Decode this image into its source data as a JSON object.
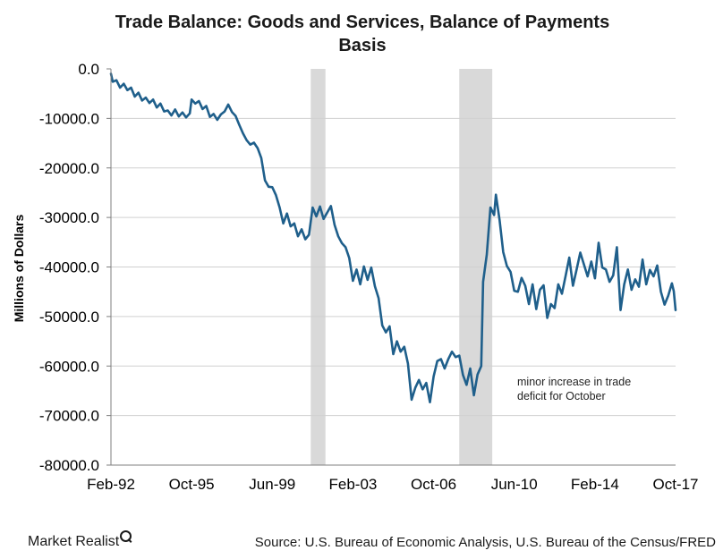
{
  "page": {
    "logo_text": "Market Realist",
    "source": "Source: U.S. Bureau of Economic Analysis, U.S. Bureau of the Census/FRED",
    "annotation": [
      "minor increase in trade",
      "deficit for October"
    ]
  },
  "colors": {
    "line": "#1f5f8b",
    "recession_shade": "#d9d9d9",
    "axis": "#7f7f7f"
  },
  "chart_data": {
    "type": "line",
    "title_lines": [
      "Trade Balance:  Goods  and  Services,  Balance  of  Payments",
      "Basis"
    ],
    "xlabel": "",
    "ylabel": "Millions of Dollars",
    "ylim": [
      -80000,
      0
    ],
    "yticks": [
      0,
      -10000,
      -20000,
      -30000,
      -40000,
      -50000,
      -60000,
      -70000,
      -80000
    ],
    "ytick_labels": [
      "0.0",
      "-10000.0",
      "-20000.0",
      "-30000.0",
      "-40000.0",
      "-50000.0",
      "-60000.0",
      "-70000.0",
      "-80000.0"
    ],
    "xlim": [
      "1992-02",
      "2017-10"
    ],
    "xticks": [
      "1992-02",
      "1995-10",
      "1999-06",
      "2003-02",
      "2006-10",
      "2010-06",
      "2014-02",
      "2017-10"
    ],
    "xtick_labels": [
      "Feb-92",
      "Oct-95",
      "Jun-99",
      "Feb-03",
      "Oct-06",
      "Jun-10",
      "Feb-14",
      "Oct-17"
    ],
    "grid": "horizontal",
    "recessions": [
      [
        "2001-03",
        "2001-11"
      ],
      [
        "2007-12",
        "2009-06"
      ]
    ],
    "series": [
      {
        "points": [
          [
            "1992-02",
            -1000
          ],
          [
            "1992-03",
            -2600
          ],
          [
            "1992-05",
            -2300
          ],
          [
            "1992-07",
            -3800
          ],
          [
            "1992-09",
            -3000
          ],
          [
            "1992-11",
            -4300
          ],
          [
            "1993-01",
            -3800
          ],
          [
            "1993-03",
            -5600
          ],
          [
            "1993-05",
            -4800
          ],
          [
            "1993-07",
            -6400
          ],
          [
            "1993-09",
            -5800
          ],
          [
            "1993-11",
            -6900
          ],
          [
            "1994-01",
            -6200
          ],
          [
            "1994-03",
            -7800
          ],
          [
            "1994-05",
            -7000
          ],
          [
            "1994-07",
            -8600
          ],
          [
            "1994-09",
            -8400
          ],
          [
            "1994-11",
            -9400
          ],
          [
            "1995-01",
            -8200
          ],
          [
            "1995-03",
            -9600
          ],
          [
            "1995-05",
            -8800
          ],
          [
            "1995-07",
            -9800
          ],
          [
            "1995-09",
            -9000
          ],
          [
            "1995-10",
            -6200
          ],
          [
            "1995-12",
            -7000
          ],
          [
            "1996-02",
            -6500
          ],
          [
            "1996-04",
            -8100
          ],
          [
            "1996-06",
            -7500
          ],
          [
            "1996-08",
            -9700
          ],
          [
            "1996-10",
            -9100
          ],
          [
            "1996-12",
            -10300
          ],
          [
            "1997-02",
            -9200
          ],
          [
            "1997-04",
            -8600
          ],
          [
            "1997-06",
            -7200
          ],
          [
            "1997-08",
            -8700
          ],
          [
            "1997-10",
            -9500
          ],
          [
            "1997-12",
            -11300
          ],
          [
            "1998-02",
            -13000
          ],
          [
            "1998-04",
            -14400
          ],
          [
            "1998-06",
            -15300
          ],
          [
            "1998-08",
            -14900
          ],
          [
            "1998-10",
            -16000
          ],
          [
            "1998-12",
            -18000
          ],
          [
            "1999-02",
            -22500
          ],
          [
            "1999-04",
            -23800
          ],
          [
            "1999-06",
            -23900
          ],
          [
            "1999-08",
            -25500
          ],
          [
            "1999-10",
            -28000
          ],
          [
            "1999-12",
            -31200
          ],
          [
            "2000-02",
            -29200
          ],
          [
            "2000-04",
            -31800
          ],
          [
            "2000-06",
            -31200
          ],
          [
            "2000-08",
            -33800
          ],
          [
            "2000-10",
            -32400
          ],
          [
            "2000-12",
            -34400
          ],
          [
            "2001-02",
            -33500
          ],
          [
            "2001-04",
            -28000
          ],
          [
            "2001-06",
            -29800
          ],
          [
            "2001-08",
            -27800
          ],
          [
            "2001-10",
            -30300
          ],
          [
            "2001-12",
            -29000
          ],
          [
            "2002-02",
            -27700
          ],
          [
            "2002-04",
            -31500
          ],
          [
            "2002-06",
            -33800
          ],
          [
            "2002-08",
            -35200
          ],
          [
            "2002-10",
            -36000
          ],
          [
            "2002-12",
            -38200
          ],
          [
            "2003-02",
            -42800
          ],
          [
            "2003-04",
            -40500
          ],
          [
            "2003-06",
            -43500
          ],
          [
            "2003-08",
            -39900
          ],
          [
            "2003-10",
            -42600
          ],
          [
            "2003-12",
            -40100
          ],
          [
            "2004-02",
            -43900
          ],
          [
            "2004-04",
            -46300
          ],
          [
            "2004-06",
            -51800
          ],
          [
            "2004-08",
            -53200
          ],
          [
            "2004-10",
            -52000
          ],
          [
            "2004-12",
            -57600
          ],
          [
            "2005-02",
            -55000
          ],
          [
            "2005-04",
            -57100
          ],
          [
            "2005-06",
            -56100
          ],
          [
            "2005-08",
            -59500
          ],
          [
            "2005-10",
            -66800
          ],
          [
            "2005-12",
            -64400
          ],
          [
            "2006-02",
            -62800
          ],
          [
            "2006-04",
            -64700
          ],
          [
            "2006-06",
            -63400
          ],
          [
            "2006-08",
            -67300
          ],
          [
            "2006-10",
            -62100
          ],
          [
            "2006-12",
            -59000
          ],
          [
            "2007-02",
            -58600
          ],
          [
            "2007-04",
            -60500
          ],
          [
            "2007-06",
            -58600
          ],
          [
            "2007-08",
            -57100
          ],
          [
            "2007-10",
            -58200
          ],
          [
            "2007-12",
            -57900
          ],
          [
            "2008-02",
            -61800
          ],
          [
            "2008-04",
            -63800
          ],
          [
            "2008-06",
            -60500
          ],
          [
            "2008-08",
            -65900
          ],
          [
            "2008-10",
            -61700
          ],
          [
            "2008-12",
            -60000
          ],
          [
            "2009-01",
            -43000
          ],
          [
            "2009-03",
            -37500
          ],
          [
            "2009-05",
            -28000
          ],
          [
            "2009-07",
            -29500
          ],
          [
            "2009-08",
            -25400
          ],
          [
            "2009-10",
            -30500
          ],
          [
            "2009-12",
            -37000
          ],
          [
            "2010-02",
            -39800
          ],
          [
            "2010-04",
            -41000
          ],
          [
            "2010-06",
            -44800
          ],
          [
            "2010-08",
            -45000
          ],
          [
            "2010-10",
            -42200
          ],
          [
            "2010-12",
            -43800
          ],
          [
            "2011-02",
            -47500
          ],
          [
            "2011-04",
            -43500
          ],
          [
            "2011-06",
            -48500
          ],
          [
            "2011-08",
            -44600
          ],
          [
            "2011-10",
            -43700
          ],
          [
            "2011-12",
            -50300
          ],
          [
            "2012-02",
            -47500
          ],
          [
            "2012-04",
            -48300
          ],
          [
            "2012-06",
            -43500
          ],
          [
            "2012-08",
            -45400
          ],
          [
            "2012-10",
            -41800
          ],
          [
            "2012-12",
            -38100
          ],
          [
            "2013-02",
            -43800
          ],
          [
            "2013-04",
            -40500
          ],
          [
            "2013-06",
            -37100
          ],
          [
            "2013-08",
            -39500
          ],
          [
            "2013-10",
            -41900
          ],
          [
            "2013-12",
            -38900
          ],
          [
            "2014-02",
            -42300
          ],
          [
            "2014-04",
            -35100
          ],
          [
            "2014-06",
            -40100
          ],
          [
            "2014-08",
            -40500
          ],
          [
            "2014-10",
            -43000
          ],
          [
            "2014-12",
            -41700
          ],
          [
            "2015-02",
            -36000
          ],
          [
            "2015-04",
            -48700
          ],
          [
            "2015-06",
            -43500
          ],
          [
            "2015-08",
            -40500
          ],
          [
            "2015-10",
            -44600
          ],
          [
            "2015-12",
            -42500
          ],
          [
            "2016-02",
            -44000
          ],
          [
            "2016-04",
            -38500
          ],
          [
            "2016-06",
            -43500
          ],
          [
            "2016-08",
            -40600
          ],
          [
            "2016-10",
            -41900
          ],
          [
            "2016-12",
            -39700
          ],
          [
            "2017-02",
            -45000
          ],
          [
            "2017-04",
            -47600
          ],
          [
            "2017-06",
            -45800
          ],
          [
            "2017-08",
            -43300
          ],
          [
            "2017-09",
            -44900
          ],
          [
            "2017-10",
            -48700
          ]
        ]
      }
    ]
  }
}
